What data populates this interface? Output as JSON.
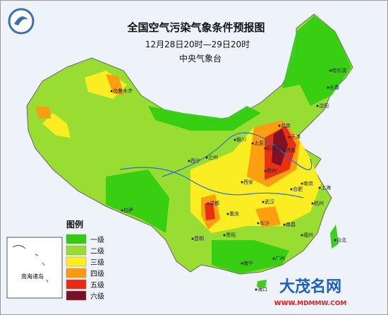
{
  "header": {
    "title": "全国空气污染气象条件预报图",
    "subtitle": "12月28日20时—29日20时",
    "issuer": "中央气象台"
  },
  "legend": {
    "title": "图例",
    "items": [
      {
        "label": "一级",
        "color": "#33cc11"
      },
      {
        "label": "二级",
        "color": "#99dd33"
      },
      {
        "label": "三级",
        "color": "#ffee22"
      },
      {
        "label": "四级",
        "color": "#ff9911"
      },
      {
        "label": "五级",
        "color": "#e82a12"
      },
      {
        "label": "六级",
        "color": "#7a1028"
      }
    ]
  },
  "inset": {
    "label": "南海诸岛"
  },
  "cities": [
    {
      "label": "乌鲁木齐"
    },
    {
      "label": "哈尔滨"
    },
    {
      "label": "长春"
    },
    {
      "label": "沈阳"
    },
    {
      "label": "北京"
    },
    {
      "label": "天津"
    },
    {
      "label": "石家庄"
    },
    {
      "label": "济南"
    },
    {
      "label": "郑州"
    },
    {
      "label": "西安"
    },
    {
      "label": "成都"
    },
    {
      "label": "重庆"
    },
    {
      "label": "武汉"
    },
    {
      "label": "长沙"
    },
    {
      "label": "南京"
    },
    {
      "label": "上海"
    },
    {
      "label": "杭州"
    },
    {
      "label": "南昌"
    },
    {
      "label": "福州"
    },
    {
      "label": "台北"
    },
    {
      "label": "广州"
    },
    {
      "label": "南宁"
    },
    {
      "label": "昆明"
    },
    {
      "label": "贵阳"
    },
    {
      "label": "拉萨"
    },
    {
      "label": "西宁"
    },
    {
      "label": "兰州"
    },
    {
      "label": "银川"
    },
    {
      "label": "太原"
    },
    {
      "label": "合肥"
    },
    {
      "label": "海口"
    }
  ],
  "watermark": {
    "name": "大茂名网",
    "url": "WWW.MDMMW.COM"
  }
}
